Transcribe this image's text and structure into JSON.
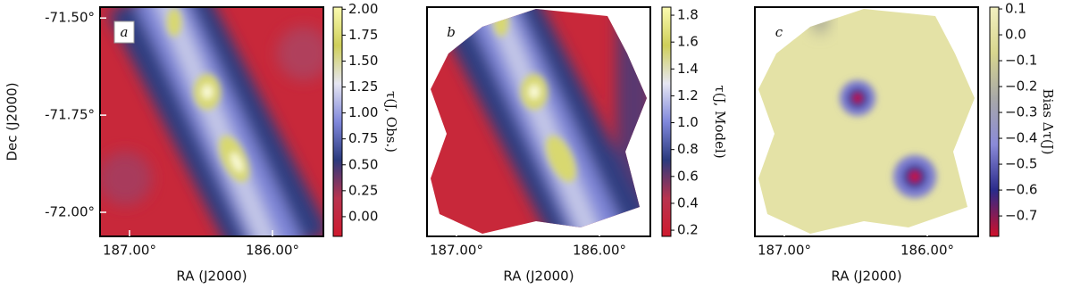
{
  "chart_data": [
    {
      "type": "heatmap",
      "panel_label": "a",
      "xlabel": "RA (J2000)",
      "ylabel": "Dec (J2000)",
      "xlim": [
        187.206,
        185.644
      ],
      "ylim": [
        -72.062,
        -71.472
      ],
      "xticks": [
        {
          "value": 187,
          "label": "187.00°"
        },
        {
          "value": 186,
          "label": "186.00°"
        }
      ],
      "yticks": [
        {
          "value": -71.5,
          "label": "-71.50°"
        },
        {
          "value": -71.75,
          "label": "-71.75°"
        },
        {
          "value": -72,
          "label": "-72.00°"
        }
      ],
      "colorbar": {
        "label": "τ(J, Obs.)",
        "lim": [
          -0.19,
          2.02
        ],
        "ticks": [
          {
            "value": 2,
            "label": "2.00"
          },
          1.75,
          {
            "value": 1.5,
            "label": "1.50"
          },
          1.25,
          {
            "value": 1,
            "label": "1.00"
          },
          0.75,
          {
            "value": 0.5,
            "label": "0.50"
          },
          0.25,
          {
            "value": 0,
            "label": "0.00"
          }
        ],
        "colormap": [
          "#cf1a2e",
          "#b8344f",
          "#2b3a7e",
          "#8088dc",
          "#e6e6f2",
          "#cfcf5a",
          "#fbfbb0"
        ]
      }
    },
    {
      "type": "heatmap",
      "panel_label": "b",
      "xlabel": "RA (J2000)",
      "xlim": [
        187.206,
        185.644
      ],
      "xticks": [
        {
          "value": 187,
          "label": "187.00°"
        },
        {
          "value": 186,
          "label": "186.00°"
        }
      ],
      "colorbar": {
        "label": "τ(J, Model)",
        "lim": [
          0.154,
          1.86
        ],
        "ticks": [
          1.8,
          1.6,
          1.4,
          1.2,
          {
            "value": 1,
            "label": "1.0"
          },
          0.8,
          0.6,
          0.4,
          0.2
        ],
        "colormap": [
          "#cf1a2e",
          "#b8344f",
          "#2b3a7e",
          "#8088dc",
          "#e6e6f2",
          "#cfcf5a",
          "#fbfbb0"
        ]
      }
    },
    {
      "type": "heatmap",
      "panel_label": "c",
      "xlabel": "RA (J2000)",
      "xlim": [
        187.206,
        185.644
      ],
      "xticks": [
        {
          "value": 187,
          "label": "187.00°"
        },
        {
          "value": 186,
          "label": "186.00°"
        }
      ],
      "colorbar": {
        "label": "Bias Δτ(J)",
        "lim": [
          -0.779,
          0.107
        ],
        "ticks": [
          0.1,
          {
            "value": 0,
            "label": "0.0"
          },
          {
            "value": -0.1,
            "label": "−0.1"
          },
          {
            "value": -0.2,
            "label": "−0.2"
          },
          {
            "value": -0.3,
            "label": "−0.3"
          },
          {
            "value": -0.4,
            "label": "−0.4"
          },
          {
            "value": -0.5,
            "label": "−0.5"
          },
          {
            "value": -0.6,
            "label": "−0.6"
          },
          {
            "value": -0.7,
            "label": "−0.7"
          }
        ],
        "colormap": [
          "#d0102a",
          "#2a2a8a",
          "#8a8ad8",
          "#a8a8a8",
          "#d8d68e",
          "#f2f0c0"
        ]
      }
    }
  ]
}
